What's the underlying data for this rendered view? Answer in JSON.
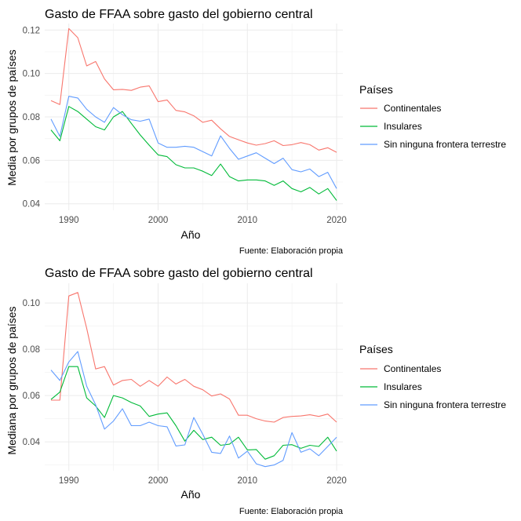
{
  "legend": {
    "title": "Países",
    "items": [
      {
        "label": "Continentales",
        "color": "#F8766D"
      },
      {
        "label": "Insulares",
        "color": "#00BA38"
      },
      {
        "label": "Sin ninguna frontera terrestre",
        "color": "#619CFF"
      }
    ]
  },
  "chart_data": [
    {
      "type": "line",
      "title": "Gasto de FFAA sobre gasto del gobierno central",
      "xlabel": "Año",
      "ylabel": "Media por grupos de países",
      "caption": "Fuente: Elaboración propia",
      "xlim": [
        1987.3,
        2020.7
      ],
      "ylim": [
        0.037,
        0.123
      ],
      "xticks": [
        1990,
        2000,
        2010,
        2020
      ],
      "yticks": [
        0.04,
        0.06,
        0.08,
        0.1,
        0.12
      ],
      "ytick_labels": [
        "0.04",
        "0.06",
        "0.08",
        "0.10",
        "0.12"
      ],
      "grid": true,
      "legend_position": "right",
      "x": [
        1988,
        1989,
        1990,
        1991,
        1992,
        1993,
        1994,
        1995,
        1996,
        1997,
        1998,
        1999,
        2000,
        2001,
        2002,
        2003,
        2004,
        2005,
        2006,
        2007,
        2008,
        2009,
        2010,
        2011,
        2012,
        2013,
        2014,
        2015,
        2016,
        2017,
        2018,
        2019,
        2020
      ],
      "series": [
        {
          "name": "Continentales",
          "color": "#F8766D",
          "values": [
            0.0875,
            0.0857,
            0.1207,
            0.1165,
            0.1035,
            0.1055,
            0.0975,
            0.0925,
            0.0927,
            0.0922,
            0.0937,
            0.0943,
            0.087,
            0.0878,
            0.083,
            0.0823,
            0.0805,
            0.0775,
            0.0785,
            0.0745,
            0.071,
            0.0695,
            0.068,
            0.067,
            0.0677,
            0.069,
            0.0668,
            0.0672,
            0.0682,
            0.0672,
            0.0647,
            0.0658,
            0.0637
          ]
        },
        {
          "name": "Insulares",
          "color": "#00BA38",
          "values": [
            0.074,
            0.069,
            0.0848,
            0.0825,
            0.079,
            0.0755,
            0.074,
            0.08,
            0.0825,
            0.077,
            0.0717,
            0.067,
            0.0625,
            0.0617,
            0.058,
            0.0565,
            0.0565,
            0.055,
            0.053,
            0.0583,
            0.0525,
            0.0505,
            0.051,
            0.051,
            0.0505,
            0.0485,
            0.0505,
            0.047,
            0.0455,
            0.0475,
            0.0445,
            0.047,
            0.0415
          ]
        },
        {
          "name": "Sin ninguna frontera terrestre",
          "color": "#619CFF",
          "values": [
            0.079,
            0.071,
            0.0895,
            0.0887,
            0.0835,
            0.08,
            0.0775,
            0.0843,
            0.081,
            0.0787,
            0.078,
            0.079,
            0.068,
            0.066,
            0.066,
            0.0665,
            0.066,
            0.064,
            0.062,
            0.0713,
            0.0655,
            0.0605,
            0.062,
            0.0635,
            0.061,
            0.0585,
            0.061,
            0.0557,
            0.0547,
            0.056,
            0.0525,
            0.0545,
            0.047
          ]
        }
      ]
    },
    {
      "type": "line",
      "title": "Gasto de FFAA sobre gasto del gobierno central",
      "xlabel": "Año",
      "ylabel": "Mediana por grupos de países",
      "caption": "Fuente: Elaboración propia",
      "xlim": [
        1987.3,
        2020.7
      ],
      "ylim": [
        0.0275,
        0.1085
      ],
      "xticks": [
        1990,
        2000,
        2010,
        2020
      ],
      "yticks": [
        0.04,
        0.06,
        0.08,
        0.1
      ],
      "ytick_labels": [
        "0.04",
        "0.06",
        "0.08",
        "0.10"
      ],
      "grid": true,
      "legend_position": "right",
      "x": [
        1988,
        1989,
        1990,
        1991,
        1992,
        1993,
        1994,
        1995,
        1996,
        1997,
        1998,
        1999,
        2000,
        2001,
        2002,
        2003,
        2004,
        2005,
        2006,
        2007,
        2008,
        2009,
        2010,
        2011,
        2012,
        2013,
        2014,
        2015,
        2016,
        2017,
        2018,
        2019,
        2020
      ],
      "series": [
        {
          "name": "Continentales",
          "color": "#F8766D",
          "values": [
            0.058,
            0.058,
            0.103,
            0.1045,
            0.089,
            0.0715,
            0.0725,
            0.0645,
            0.0665,
            0.067,
            0.064,
            0.0665,
            0.064,
            0.068,
            0.065,
            0.067,
            0.064,
            0.0625,
            0.0598,
            0.0607,
            0.0585,
            0.0515,
            0.0515,
            0.05,
            0.049,
            0.0485,
            0.0505,
            0.051,
            0.0512,
            0.0517,
            0.051,
            0.052,
            0.0485
          ]
        },
        {
          "name": "Insulares",
          "color": "#00BA38",
          "values": [
            0.0583,
            0.0615,
            0.0725,
            0.0725,
            0.059,
            0.0555,
            0.0505,
            0.06,
            0.059,
            0.057,
            0.0555,
            0.051,
            0.052,
            0.0525,
            0.047,
            0.0403,
            0.045,
            0.041,
            0.042,
            0.0385,
            0.039,
            0.042,
            0.0365,
            0.0367,
            0.0325,
            0.034,
            0.0385,
            0.0388,
            0.0372,
            0.0385,
            0.038,
            0.042,
            0.036
          ]
        },
        {
          "name": "Sin ninguna frontera terrestre",
          "color": "#619CFF",
          "values": [
            0.071,
            0.0665,
            0.0745,
            0.079,
            0.064,
            0.056,
            0.0455,
            0.049,
            0.0543,
            0.047,
            0.047,
            0.0485,
            0.047,
            0.0465,
            0.0382,
            0.0387,
            0.0505,
            0.0433,
            0.0355,
            0.035,
            0.0425,
            0.033,
            0.036,
            0.0305,
            0.0293,
            0.03,
            0.032,
            0.044,
            0.0355,
            0.037,
            0.034,
            0.038,
            0.042
          ]
        }
      ]
    }
  ]
}
